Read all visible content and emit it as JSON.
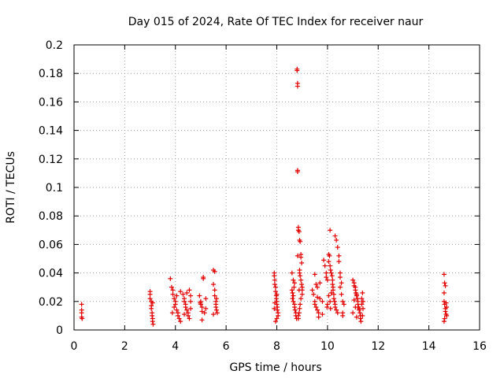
{
  "chart_data": {
    "type": "scatter",
    "title": "Day 015 of 2024, Rate Of TEC Index for receiver naur",
    "xlabel": "GPS time / hours",
    "ylabel": "ROTI / TECUs",
    "xlim": [
      0,
      16
    ],
    "ylim": [
      0,
      0.2
    ],
    "xticks": [
      0,
      2,
      4,
      6,
      8,
      10,
      12,
      14,
      16
    ],
    "yticks": [
      0,
      0.02,
      0.04,
      0.06,
      0.08,
      0.1,
      0.12,
      0.14,
      0.16,
      0.18,
      0.2
    ],
    "xtick_labels": [
      "0",
      "2",
      "4",
      "6",
      "8",
      "10",
      "12",
      "14",
      "16"
    ],
    "ytick_labels": [
      "0",
      "0.02",
      "0.04",
      "0.06",
      "0.08",
      "0.1",
      "0.12",
      "0.14",
      "0.16",
      "0.18",
      "0.2"
    ],
    "grid": true,
    "marker": "plus",
    "color": "#e00000",
    "series": [
      {
        "name": "ROTI",
        "points": [
          [
            0.3,
            0.018
          ],
          [
            0.3,
            0.014
          ],
          [
            0.3,
            0.012
          ],
          [
            0.3,
            0.009
          ],
          [
            0.32,
            0.008
          ],
          [
            3.0,
            0.027
          ],
          [
            3.0,
            0.025
          ],
          [
            3.05,
            0.02
          ],
          [
            3.05,
            0.017
          ],
          [
            3.05,
            0.015
          ],
          [
            3.08,
            0.012
          ],
          [
            3.08,
            0.01
          ],
          [
            3.1,
            0.008
          ],
          [
            3.1,
            0.006
          ],
          [
            3.12,
            0.004
          ],
          [
            3.0,
            0.022
          ],
          [
            3.1,
            0.019
          ],
          [
            3.8,
            0.036
          ],
          [
            3.85,
            0.03
          ],
          [
            3.9,
            0.028
          ],
          [
            3.9,
            0.025
          ],
          [
            3.95,
            0.022
          ],
          [
            4.0,
            0.02
          ],
          [
            4.0,
            0.018
          ],
          [
            3.95,
            0.016
          ],
          [
            4.05,
            0.014
          ],
          [
            4.1,
            0.012
          ],
          [
            4.1,
            0.01
          ],
          [
            4.15,
            0.008
          ],
          [
            4.2,
            0.027
          ],
          [
            4.05,
            0.024
          ],
          [
            3.88,
            0.012
          ],
          [
            4.2,
            0.006
          ],
          [
            4.3,
            0.025
          ],
          [
            4.35,
            0.022
          ],
          [
            4.35,
            0.02
          ],
          [
            4.4,
            0.018
          ],
          [
            4.4,
            0.016
          ],
          [
            4.45,
            0.014
          ],
          [
            4.5,
            0.012
          ],
          [
            4.5,
            0.01
          ],
          [
            4.55,
            0.008
          ],
          [
            4.55,
            0.028
          ],
          [
            4.6,
            0.024
          ],
          [
            4.6,
            0.02
          ],
          [
            4.45,
            0.026
          ],
          [
            4.6,
            0.015
          ],
          [
            4.35,
            0.011
          ],
          [
            4.95,
            0.024
          ],
          [
            5.0,
            0.02
          ],
          [
            5.0,
            0.018
          ],
          [
            5.05,
            0.016
          ],
          [
            5.05,
            0.013
          ],
          [
            5.1,
            0.036
          ],
          [
            5.1,
            0.037
          ],
          [
            5.15,
            0.012
          ],
          [
            5.2,
            0.022
          ],
          [
            5.2,
            0.015
          ],
          [
            5.05,
            0.007
          ],
          [
            4.98,
            0.019
          ],
          [
            5.5,
            0.042
          ],
          [
            5.55,
            0.041
          ],
          [
            5.5,
            0.032
          ],
          [
            5.55,
            0.028
          ],
          [
            5.55,
            0.024
          ],
          [
            5.6,
            0.02
          ],
          [
            5.6,
            0.018
          ],
          [
            5.6,
            0.016
          ],
          [
            5.62,
            0.014
          ],
          [
            5.65,
            0.012
          ],
          [
            5.5,
            0.011
          ],
          [
            5.62,
            0.022
          ],
          [
            7.9,
            0.04
          ],
          [
            7.9,
            0.038
          ],
          [
            7.92,
            0.035
          ],
          [
            7.92,
            0.032
          ],
          [
            7.95,
            0.03
          ],
          [
            7.95,
            0.027
          ],
          [
            7.98,
            0.024
          ],
          [
            7.98,
            0.022
          ],
          [
            8.0,
            0.02
          ],
          [
            8.0,
            0.018
          ],
          [
            8.02,
            0.016
          ],
          [
            8.02,
            0.014
          ],
          [
            8.05,
            0.012
          ],
          [
            8.05,
            0.01
          ],
          [
            8.0,
            0.008
          ],
          [
            7.95,
            0.006
          ],
          [
            7.9,
            0.015
          ],
          [
            7.92,
            0.019
          ],
          [
            8.0,
            0.025
          ],
          [
            8.6,
            0.028
          ],
          [
            8.62,
            0.026
          ],
          [
            8.65,
            0.024
          ],
          [
            8.65,
            0.02
          ],
          [
            8.7,
            0.018
          ],
          [
            8.7,
            0.016
          ],
          [
            8.72,
            0.014
          ],
          [
            8.75,
            0.012
          ],
          [
            8.75,
            0.01
          ],
          [
            8.78,
            0.008
          ],
          [
            8.6,
            0.04
          ],
          [
            8.65,
            0.035
          ],
          [
            8.7,
            0.033
          ],
          [
            8.62,
            0.022
          ],
          [
            8.68,
            0.03
          ],
          [
            8.8,
            0.183
          ],
          [
            8.8,
            0.182
          ],
          [
            8.82,
            0.173
          ],
          [
            8.82,
            0.171
          ],
          [
            8.82,
            0.112
          ],
          [
            8.82,
            0.111
          ],
          [
            8.85,
            0.072
          ],
          [
            8.85,
            0.07
          ],
          [
            8.88,
            0.069
          ],
          [
            8.9,
            0.063
          ],
          [
            8.92,
            0.062
          ],
          [
            8.95,
            0.053
          ],
          [
            8.95,
            0.051
          ],
          [
            8.9,
            0.042
          ],
          [
            8.9,
            0.04
          ],
          [
            8.92,
            0.038
          ],
          [
            8.95,
            0.035
          ],
          [
            8.98,
            0.032
          ],
          [
            9.0,
            0.03
          ],
          [
            9.0,
            0.028
          ],
          [
            9.0,
            0.025
          ],
          [
            8.95,
            0.022
          ],
          [
            8.92,
            0.018
          ],
          [
            8.9,
            0.015
          ],
          [
            8.88,
            0.012
          ],
          [
            8.85,
            0.01
          ],
          [
            8.85,
            0.008
          ],
          [
            8.82,
            0.052
          ],
          [
            8.98,
            0.047
          ],
          [
            8.88,
            0.028
          ],
          [
            9.4,
            0.028
          ],
          [
            9.45,
            0.025
          ],
          [
            9.5,
            0.02
          ],
          [
            9.5,
            0.018
          ],
          [
            9.55,
            0.016
          ],
          [
            9.6,
            0.014
          ],
          [
            9.65,
            0.012
          ],
          [
            9.65,
            0.009
          ],
          [
            9.5,
            0.039
          ],
          [
            9.55,
            0.032
          ],
          [
            9.6,
            0.03
          ],
          [
            9.7,
            0.022
          ],
          [
            9.8,
            0.02
          ],
          [
            9.85,
            0.049
          ],
          [
            9.9,
            0.045
          ],
          [
            9.95,
            0.04
          ],
          [
            9.95,
            0.037
          ],
          [
            10.0,
            0.035
          ],
          [
            9.98,
            0.016
          ],
          [
            9.8,
            0.011
          ],
          [
            9.7,
            0.033
          ],
          [
            9.6,
            0.023
          ],
          [
            10.05,
            0.053
          ],
          [
            10.08,
            0.052
          ],
          [
            10.05,
            0.048
          ],
          [
            10.1,
            0.045
          ],
          [
            10.12,
            0.042
          ],
          [
            10.15,
            0.04
          ],
          [
            10.18,
            0.038
          ],
          [
            10.2,
            0.035
          ],
          [
            10.2,
            0.032
          ],
          [
            10.22,
            0.03
          ],
          [
            10.22,
            0.028
          ],
          [
            10.25,
            0.025
          ],
          [
            10.25,
            0.022
          ],
          [
            10.28,
            0.02
          ],
          [
            10.3,
            0.018
          ],
          [
            10.3,
            0.016
          ],
          [
            10.35,
            0.014
          ],
          [
            10.4,
            0.012
          ],
          [
            10.15,
            0.026
          ],
          [
            10.05,
            0.024
          ],
          [
            10.1,
            0.02
          ],
          [
            10.0,
            0.018
          ],
          [
            10.12,
            0.015
          ],
          [
            10.1,
            0.07
          ],
          [
            10.3,
            0.066
          ],
          [
            10.35,
            0.063
          ],
          [
            10.4,
            0.058
          ],
          [
            10.45,
            0.052
          ],
          [
            10.45,
            0.048
          ],
          [
            10.5,
            0.04
          ],
          [
            10.5,
            0.037
          ],
          [
            10.55,
            0.033
          ],
          [
            10.6,
            0.02
          ],
          [
            10.65,
            0.018
          ],
          [
            10.6,
            0.012
          ],
          [
            10.6,
            0.01
          ],
          [
            10.55,
            0.025
          ],
          [
            10.5,
            0.03
          ],
          [
            11.0,
            0.035
          ],
          [
            11.05,
            0.033
          ],
          [
            11.05,
            0.031
          ],
          [
            11.1,
            0.03
          ],
          [
            11.1,
            0.028
          ],
          [
            11.12,
            0.026
          ],
          [
            11.15,
            0.025
          ],
          [
            11.15,
            0.024
          ],
          [
            11.18,
            0.022
          ],
          [
            11.2,
            0.02
          ],
          [
            11.2,
            0.018
          ],
          [
            11.22,
            0.016
          ],
          [
            11.25,
            0.015
          ],
          [
            11.25,
            0.014
          ],
          [
            11.28,
            0.012
          ],
          [
            11.3,
            0.01
          ],
          [
            11.3,
            0.008
          ],
          [
            11.32,
            0.006
          ],
          [
            11.35,
            0.018
          ],
          [
            11.35,
            0.022
          ],
          [
            11.38,
            0.026
          ],
          [
            11.4,
            0.02
          ],
          [
            11.4,
            0.015
          ],
          [
            11.38,
            0.01
          ],
          [
            11.05,
            0.021
          ],
          [
            11.1,
            0.016
          ],
          [
            11.0,
            0.012
          ],
          [
            11.15,
            0.009
          ],
          [
            14.6,
            0.039
          ],
          [
            14.62,
            0.033
          ],
          [
            14.65,
            0.031
          ],
          [
            14.6,
            0.026
          ],
          [
            14.6,
            0.02
          ],
          [
            14.62,
            0.018
          ],
          [
            14.65,
            0.015
          ],
          [
            14.65,
            0.013
          ],
          [
            14.68,
            0.011
          ],
          [
            14.7,
            0.01
          ],
          [
            14.62,
            0.008
          ],
          [
            14.6,
            0.006
          ],
          [
            14.7,
            0.016
          ],
          [
            14.68,
            0.019
          ]
        ]
      }
    ]
  }
}
